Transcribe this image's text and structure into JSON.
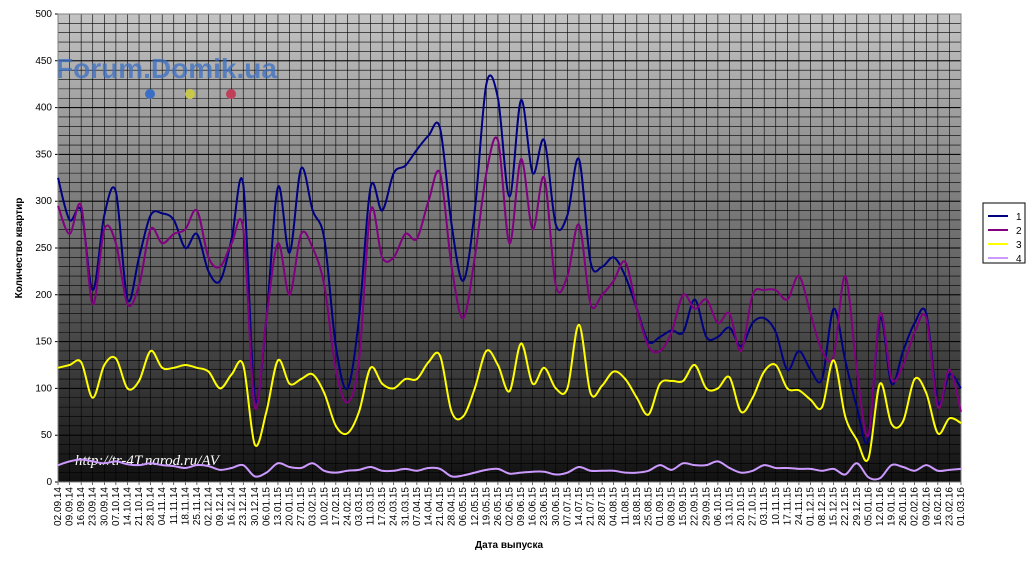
{
  "chart_data": {
    "type": "line",
    "ylabel": "Количество квартир",
    "xlabel": "Дата выпуска",
    "watermarks": [
      "Forum.Domik.ua",
      "http://tr-4T.narod.ru/AV"
    ],
    "categories": [
      "02.09.14",
      "09.09.14",
      "16.09.14",
      "23.09.14",
      "30.09.14",
      "07.10.14",
      "14.10.14",
      "21.10.14",
      "28.10.14",
      "04.11.14",
      "11.11.14",
      "18.11.14",
      "25.11.14",
      "02.12.14",
      "09.12.14",
      "16.12.14",
      "23.12.14",
      "30.12.14",
      "06.01.15",
      "13.01.15",
      "20.01.15",
      "27.01.15",
      "03.02.15",
      "10.02.15",
      "17.02.15",
      "24.02.15",
      "03.03.15",
      "11.03.15",
      "17.03.15",
      "24.03.15",
      "31.03.15",
      "07.04.15",
      "14.04.15",
      "21.04.15",
      "28.04.15",
      "06.05.15",
      "12.05.15",
      "19.05.15",
      "26.05.15",
      "02.06.15",
      "09.06.15",
      "16.06.15",
      "23.06.15",
      "30.06.15",
      "07.07.15",
      "14.07.15",
      "21.07.15",
      "28.07.15",
      "04.08.15",
      "11.08.15",
      "18.08.15",
      "25.08.15",
      "01.09.15",
      "08.09.15",
      "15.09.15",
      "22.09.15",
      "29.09.15",
      "06.10.15",
      "13.10.15",
      "20.10.15",
      "27.10.15",
      "03.11.15",
      "10.11.15",
      "17.11.15",
      "24.11.15",
      "01.12.15",
      "08.12.15",
      "15.12.15",
      "22.12.15",
      "29.12.15",
      "05.01.16",
      "12.01.16",
      "19.01.16",
      "26.01.16",
      "02.02.16",
      "09.02.16",
      "16.02.16",
      "23.02.16",
      "01.03.16"
    ],
    "series": [
      {
        "name": "1",
        "color": "#000080",
        "values": [
          325,
          280,
          290,
          205,
          285,
          310,
          195,
          240,
          285,
          287,
          280,
          250,
          265,
          225,
          215,
          260,
          318,
          90,
          175,
          315,
          245,
          335,
          290,
          260,
          145,
          100,
          175,
          315,
          290,
          330,
          338,
          355,
          370,
          378,
          275,
          215,
          290,
          425,
          410,
          305,
          408,
          330,
          365,
          275,
          285,
          345,
          235,
          230,
          240,
          220,
          185,
          150,
          155,
          162,
          160,
          195,
          155,
          155,
          165,
          145,
          170,
          175,
          160,
          120,
          140,
          120,
          110,
          185,
          130,
          80,
          45,
          175,
          105,
          140,
          170,
          180,
          85,
          115,
          100
        ]
      },
      {
        "name": "2",
        "color": "#800080",
        "values": [
          295,
          265,
          295,
          190,
          270,
          255,
          190,
          210,
          270,
          255,
          265,
          270,
          290,
          240,
          230,
          255,
          270,
          80,
          175,
          255,
          200,
          265,
          250,
          210,
          120,
          85,
          130,
          290,
          240,
          240,
          265,
          260,
          300,
          330,
          230,
          175,
          240,
          330,
          365,
          255,
          345,
          270,
          325,
          210,
          220,
          275,
          190,
          200,
          215,
          235,
          185,
          145,
          140,
          160,
          200,
          185,
          195,
          170,
          180,
          140,
          200,
          205,
          205,
          195,
          220,
          180,
          140,
          135,
          220,
          120,
          50,
          180,
          110,
          125,
          160,
          175,
          80,
          120,
          75
        ]
      },
      {
        "name": "3",
        "color": "#ffff00",
        "values": [
          122,
          125,
          128,
          90,
          125,
          132,
          100,
          108,
          140,
          122,
          122,
          125,
          122,
          118,
          100,
          115,
          125,
          40,
          75,
          130,
          105,
          110,
          115,
          95,
          60,
          52,
          75,
          122,
          105,
          100,
          110,
          110,
          128,
          135,
          75,
          70,
          100,
          140,
          125,
          97,
          148,
          105,
          122,
          100,
          100,
          168,
          95,
          103,
          118,
          110,
          90,
          72,
          105,
          108,
          108,
          125,
          100,
          100,
          112,
          75,
          90,
          118,
          125,
          100,
          98,
          88,
          80,
          130,
          70,
          45,
          25,
          105,
          62,
          65,
          110,
          95,
          52,
          68,
          63
        ]
      },
      {
        "name": "4",
        "color": "#cc99ff",
        "values": [
          18,
          22,
          24,
          22,
          20,
          22,
          19,
          18,
          20,
          18,
          17,
          15,
          18,
          17,
          13,
          15,
          18,
          6,
          10,
          20,
          16,
          15,
          20,
          12,
          10,
          12,
          13,
          16,
          12,
          12,
          14,
          12,
          15,
          14,
          6,
          7,
          10,
          13,
          14,
          9,
          10,
          11,
          11,
          8,
          10,
          16,
          12,
          12,
          12,
          10,
          10,
          12,
          18,
          13,
          20,
          18,
          18,
          22,
          15,
          10,
          12,
          18,
          15,
          15,
          14,
          14,
          12,
          14,
          8,
          20,
          5,
          4,
          18,
          16,
          12,
          18,
          12,
          13,
          14
        ]
      }
    ],
    "ylim": [
      0,
      500
    ],
    "yticks": [
      0,
      50,
      100,
      150,
      200,
      250,
      300,
      350,
      400,
      450,
      500
    ],
    "minor_grid_step": 10,
    "grid": true,
    "legend": "right",
    "smooth": true
  }
}
